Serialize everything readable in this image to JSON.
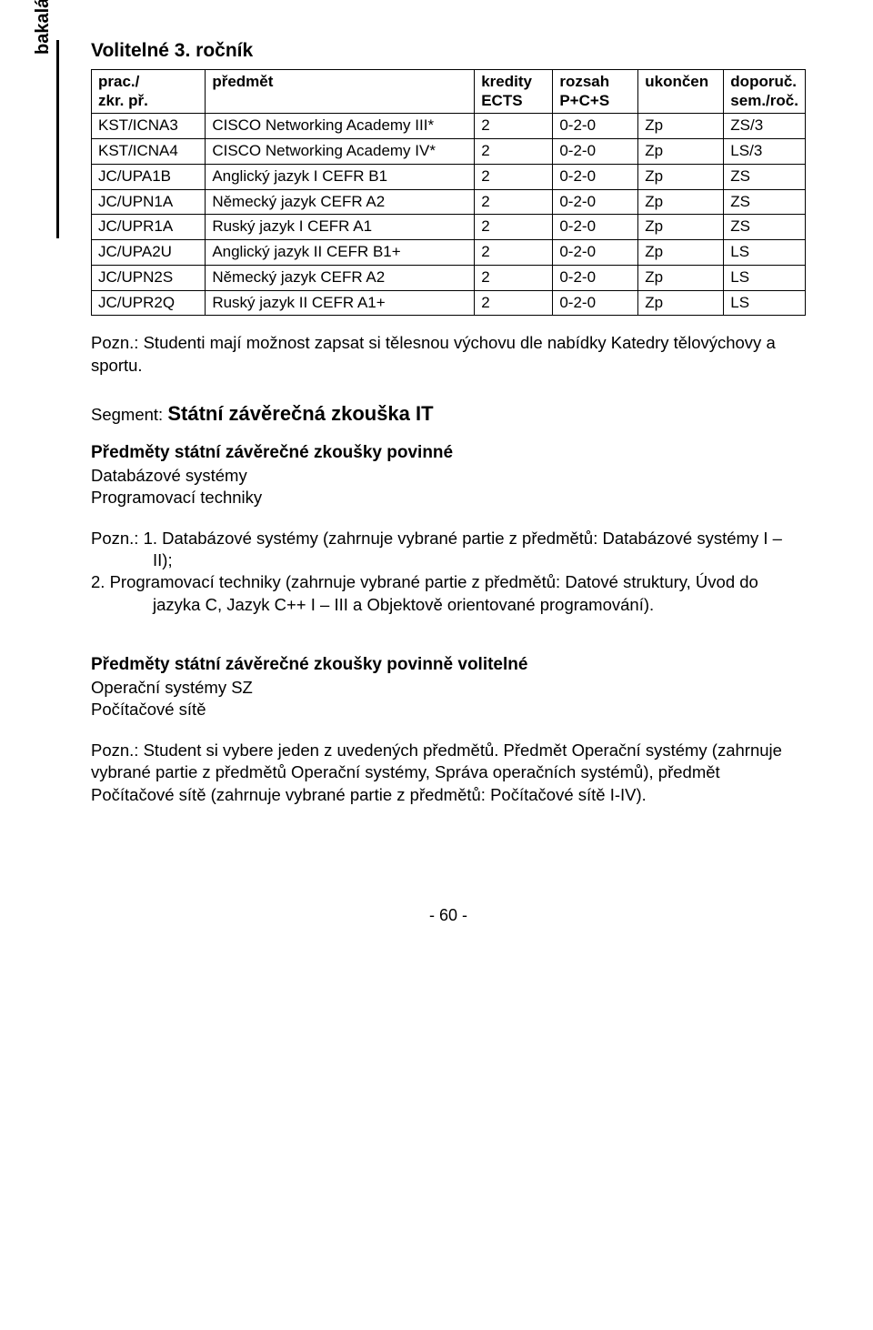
{
  "sidebar_label": "bakalářské studium",
  "title": "Volitelné 3. ročník",
  "table": {
    "headers": {
      "code": "prac./\nzkr. př.",
      "subject": "předmět",
      "credits": "kredity\nECTS",
      "range": "rozsah\nP+C+S",
      "end": "ukončen",
      "rec": "doporuč.\nsem./roč."
    },
    "rows": [
      {
        "code": "KST/ICNA3",
        "subject": "CISCO Networking Academy III*",
        "credits": "2",
        "range": "0-2-0",
        "end": "Zp",
        "rec": "ZS/3"
      },
      {
        "code": "KST/ICNA4",
        "subject": "CISCO Networking Academy IV*",
        "credits": "2",
        "range": "0-2-0",
        "end": "Zp",
        "rec": "LS/3"
      },
      {
        "code": "JC/UPA1B",
        "subject": "Anglický jazyk I CEFR B1",
        "credits": "2",
        "range": "0-2-0",
        "end": "Zp",
        "rec": "ZS"
      },
      {
        "code": "JC/UPN1A",
        "subject": "Německý jazyk CEFR A2",
        "credits": "2",
        "range": "0-2-0",
        "end": "Zp",
        "rec": "ZS"
      },
      {
        "code": "JC/UPR1A",
        "subject": "Ruský jazyk I CEFR A1",
        "credits": "2",
        "range": "0-2-0",
        "end": "Zp",
        "rec": "ZS"
      },
      {
        "code": "JC/UPA2U",
        "subject": "Anglický jazyk II CEFR B1+",
        "credits": "2",
        "range": "0-2-0",
        "end": "Zp",
        "rec": "LS"
      },
      {
        "code": "JC/UPN2S",
        "subject": "Německý jazyk CEFR A2",
        "credits": "2",
        "range": "0-2-0",
        "end": "Zp",
        "rec": "LS"
      },
      {
        "code": "JC/UPR2Q",
        "subject": "Ruský jazyk II CEFR A1+",
        "credits": "2",
        "range": "0-2-0",
        "end": "Zp",
        "rec": "LS"
      }
    ]
  },
  "note1": "Pozn.: Studenti mají možnost zapsat si tělesnou výchovu dle nabídky Katedry tělovýchovy a sportu.",
  "segment_prefix": "Segment: ",
  "segment_name": "Státní závěrečná zkouška IT",
  "block1": {
    "heading": "Předměty státní závěrečné zkoušky povinné",
    "items": [
      "Databázové systémy",
      "Programovací techniky"
    ]
  },
  "note2_lead": "Pozn.: ",
  "note2_line1": "1. Databázové systémy (zahrnuje vybrané partie z předmětů: Databázové systémy I – II);",
  "note2_line2": "2. Programovací techniky (zahrnuje vybrané partie z předmětů: Datové struktury, Úvod do jazyka C, Jazyk C++ I – III a Objektově orientované programování).",
  "block2": {
    "heading": "Předměty státní závěrečné zkoušky povinně volitelné",
    "items": [
      "Operační systémy SZ",
      "Počítačové sítě"
    ]
  },
  "note3": "Pozn.: Student si vybere jeden z uvedených předmětů. Předmět Operační systémy (zahrnuje vybrané partie z předmětů Operační systémy, Správa operačních systémů), předmět Počítačové sítě (zahrnuje vybrané partie z předmětů: Počítačové sítě I-IV).",
  "page_number": "- 60 -",
  "colors": {
    "text": "#000000",
    "background": "#ffffff",
    "border": "#000000"
  }
}
